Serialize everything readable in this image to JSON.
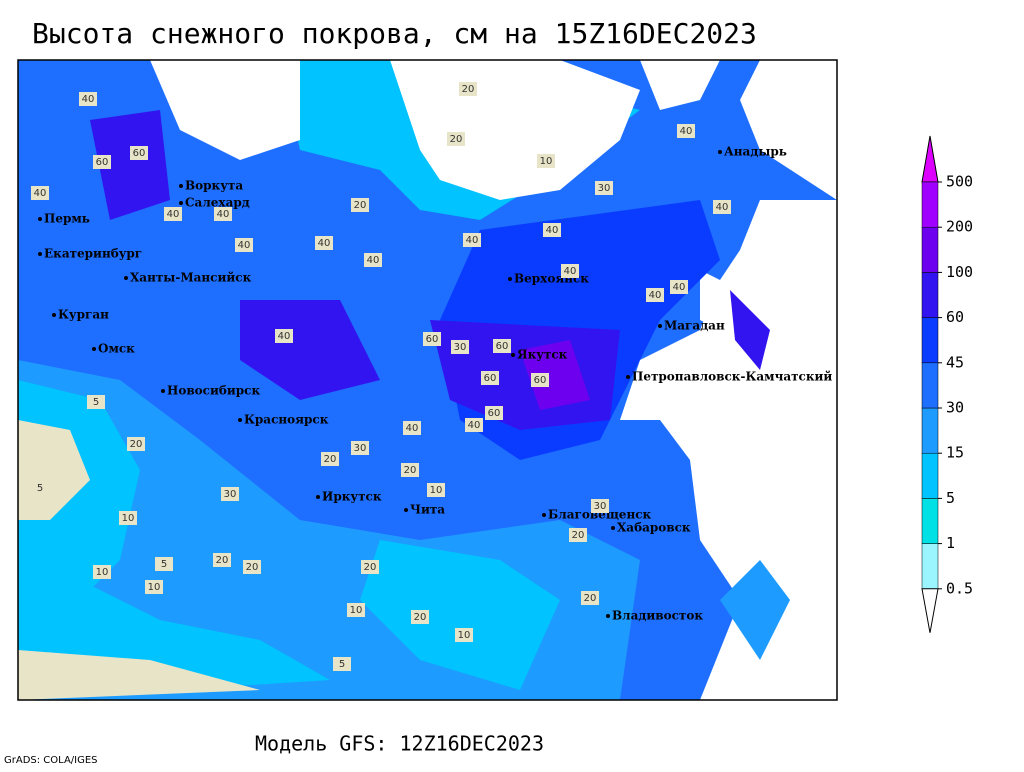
{
  "title": "Высота снежного покрова, см на 15Z16DEC2023",
  "subtitle": "Модель GFS: 12Z16DEC2023",
  "credit": "GrADS: COLA/IGES",
  "legend": {
    "levels": [
      0.5,
      1,
      5,
      15,
      30,
      45,
      60,
      100,
      200,
      500
    ],
    "colors": [
      "#ffffff",
      "#9bf5ff",
      "#00e1e6",
      "#00c3ff",
      "#1e9bff",
      "#1e6eff",
      "#0a3cff",
      "#3214f0",
      "#6e00f0",
      "#a000ff",
      "#dc00ff"
    ]
  },
  "cities": [
    "Воркута",
    "Салехард",
    "Пермь",
    "Екатеринбург",
    "Ханты-Мансийск",
    "Курган",
    "Омск",
    "Новосибирск",
    "Красноярск",
    "Иркутск",
    "Чита",
    "Верхоянск",
    "Якутск",
    "Магадан",
    "Анадырь",
    "Петропавловск-Камчатский",
    "Благовещенск",
    "Хабаровск",
    "Владивосток"
  ],
  "contour_labels": [
    40,
    20,
    20,
    10,
    40,
    60,
    60,
    40,
    40,
    40,
    40,
    40,
    40,
    40,
    40,
    40,
    40,
    40,
    40,
    30,
    20,
    40,
    60,
    30,
    60,
    60,
    60,
    40,
    40,
    60,
    30,
    20,
    20,
    20,
    10,
    5,
    10,
    20,
    10,
    5,
    10,
    20,
    5,
    20,
    10,
    5,
    20,
    10,
    20,
    20,
    30,
    30
  ]
}
